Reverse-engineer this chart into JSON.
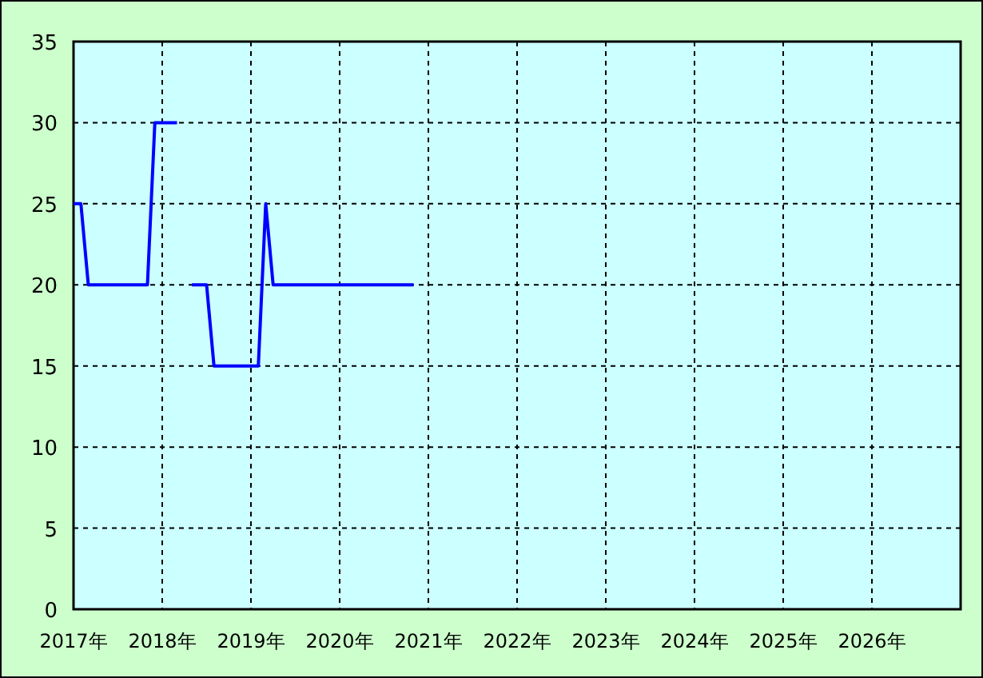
{
  "chart_data": {
    "type": "line",
    "series": [
      {
        "color": "#0000ff",
        "x": [
          "2017-01",
          "2017-02",
          "2017-03",
          "2017-04",
          "2017-05",
          "2017-06",
          "2017-07",
          "2017-08",
          "2017-09",
          "2017-10",
          "2017-11",
          "2017-12",
          "2018-01",
          "2018-02",
          "2018-03"
        ],
        "values": [
          25,
          25,
          20,
          20,
          20,
          20,
          20,
          20,
          20,
          20,
          20,
          30,
          30,
          30,
          30
        ]
      },
      {
        "color": "#0000ff",
        "x": [
          "2018-05",
          "2018-06",
          "2018-07",
          "2018-08",
          "2018-09",
          "2018-10",
          "2018-11",
          "2018-12",
          "2019-01",
          "2019-02",
          "2019-03",
          "2019-04",
          "2019-05",
          "2019-06",
          "2019-07",
          "2019-08",
          "2019-09",
          "2019-10",
          "2019-11",
          "2019-12",
          "2020-01",
          "2020-02",
          "2020-03",
          "2020-04",
          "2020-05",
          "2020-06",
          "2020-07",
          "2020-08",
          "2020-09",
          "2020-10",
          "2020-11"
        ],
        "values": [
          20,
          20,
          20,
          15,
          15,
          15,
          15,
          15,
          15,
          15,
          25,
          20,
          20,
          20,
          20,
          20,
          20,
          20,
          20,
          20,
          20,
          20,
          20,
          20,
          20,
          20,
          20,
          20,
          20,
          20,
          20
        ]
      }
    ],
    "xlim": [
      "2017-01",
      "2027-01"
    ],
    "xticks": [
      {
        "value": "2017",
        "label": "2017年"
      },
      {
        "value": "2018",
        "label": "2018年"
      },
      {
        "value": "2019",
        "label": "2019年"
      },
      {
        "value": "2020",
        "label": "2020年"
      },
      {
        "value": "2021",
        "label": "2021年"
      },
      {
        "value": "2022",
        "label": "2022年"
      },
      {
        "value": "2023",
        "label": "2023年"
      },
      {
        "value": "2024",
        "label": "2024年"
      },
      {
        "value": "2025",
        "label": "2025年"
      },
      {
        "value": "2026",
        "label": "2026年"
      }
    ],
    "ylim": [
      0,
      35
    ],
    "yticks": [
      0,
      5,
      10,
      15,
      20,
      25,
      30,
      35
    ],
    "grid": true
  }
}
